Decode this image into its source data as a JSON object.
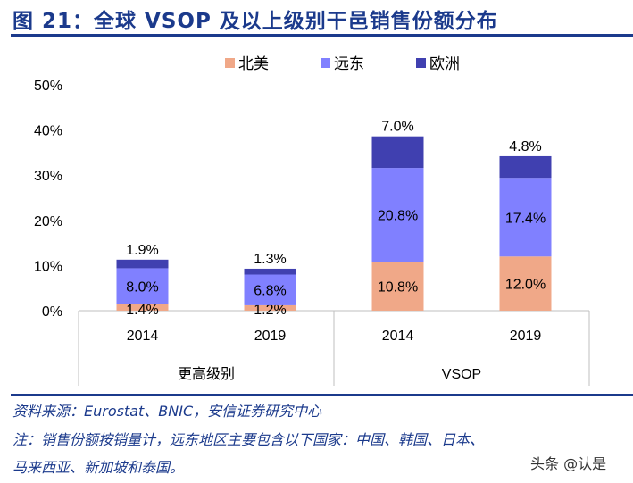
{
  "title": "图 21：全球 VSOP 及以上级别干邑销售份额分布",
  "footer": {
    "source": "资料来源：Eurostat、BNIC，安信证券研究中心",
    "note_line1": "注：销售份额按销量计，远东地区主要包含以下国家：中国、韩国、日本、",
    "note_line2": "马来西亚、新加坡和泰国。"
  },
  "watermark": "头条 @认是",
  "chart_data": {
    "type": "bar",
    "stacked": true,
    "title": "图 21：全球 VSOP 及以上级别干邑销售份额分布",
    "categories": [
      "2014",
      "2019",
      "2014",
      "2019"
    ],
    "groups": [
      {
        "label": "更高级别",
        "span": [
          0,
          1
        ]
      },
      {
        "label": "VSOP",
        "span": [
          2,
          3
        ]
      }
    ],
    "series": [
      {
        "name": "北美",
        "color": "#f0a888",
        "values": [
          1.4,
          1.2,
          10.8,
          12.0
        ]
      },
      {
        "name": "远东",
        "color": "#8080ff",
        "values": [
          8.0,
          6.8,
          20.8,
          17.4
        ]
      },
      {
        "name": "欧洲",
        "color": "#4040b0",
        "values": [
          1.9,
          1.3,
          7.0,
          4.8
        ]
      }
    ],
    "ylim": [
      0,
      50
    ],
    "yticks": [
      "0%",
      "10%",
      "20%",
      "30%",
      "40%",
      "50%"
    ],
    "legend": "top-center",
    "grid": false
  }
}
